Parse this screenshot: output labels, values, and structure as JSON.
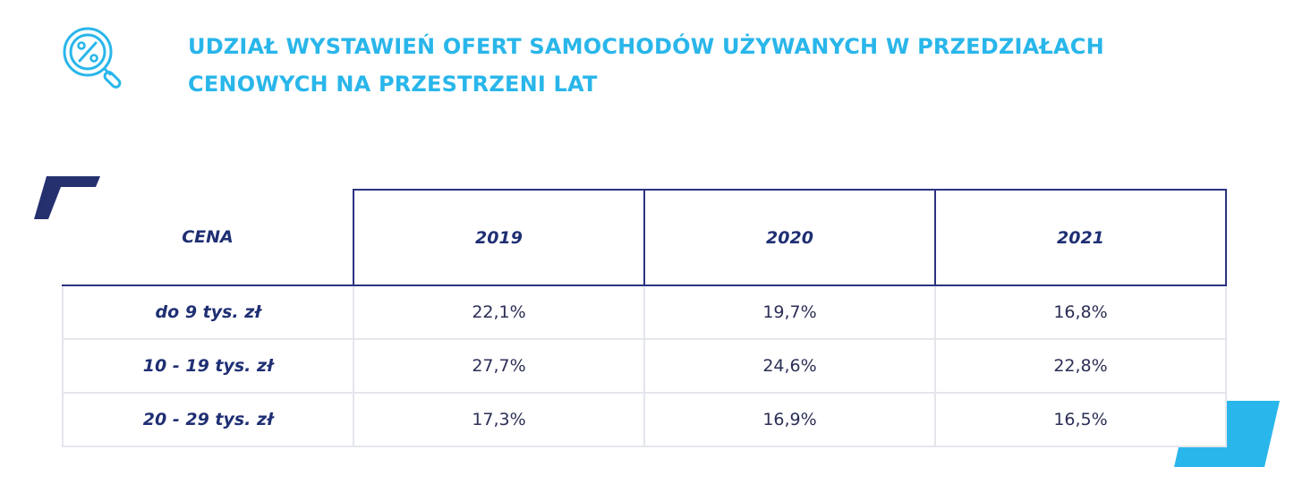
{
  "header": {
    "title_line1": "UDZIAŁ WYSTAWIEŃ OFERT SAMOCHODÓW UŻYWANYCH W PRZEDZIAŁACH",
    "title_line2": "CENOWYCH NA PRZESTRZENI LAT",
    "icon": "percent-magnifier-icon"
  },
  "colors": {
    "accent": "#29b6ea",
    "navy": "#1f2f73",
    "grid": "#e4e6ec"
  },
  "table": {
    "columns": [
      "CENA",
      "2019",
      "2020",
      "2021"
    ],
    "rows": [
      {
        "label": "do 9 tys. zł",
        "values": [
          "22,1%",
          "19,7%",
          "16,8%"
        ]
      },
      {
        "label": "10 - 19 tys. zł",
        "values": [
          "27,7%",
          "24,6%",
          "22,8%"
        ]
      },
      {
        "label": "20 - 29 tys. zł",
        "values": [
          "17,3%",
          "16,9%",
          "16,5%"
        ]
      }
    ]
  }
}
